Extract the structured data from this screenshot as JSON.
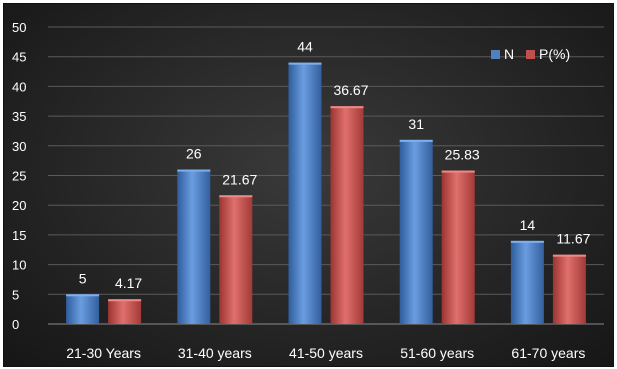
{
  "chart_data": {
    "type": "bar",
    "title": "",
    "xlabel": "",
    "ylabel": "",
    "categories": [
      "21-30 Years",
      "31-40 years",
      "41-50 years",
      "51-60 years",
      "61-70 years"
    ],
    "series": [
      {
        "name": "N",
        "values": [
          5,
          26,
          44,
          31,
          14
        ],
        "labels": [
          "5",
          "26",
          "44",
          "31",
          "14"
        ],
        "color": "#4f81bd"
      },
      {
        "name": "P(%)",
        "values": [
          4.17,
          21.67,
          36.67,
          25.83,
          11.67
        ],
        "labels": [
          "4.17",
          "21.67",
          "36.67",
          "25.83",
          "11.67"
        ],
        "color": "#c0504d"
      }
    ],
    "ylim": [
      0,
      50
    ],
    "yticks": [
      "0",
      "5",
      "10",
      "15",
      "20",
      "25",
      "30",
      "35",
      "40",
      "45",
      "50"
    ],
    "grid": true,
    "legend_position": "top-right"
  }
}
